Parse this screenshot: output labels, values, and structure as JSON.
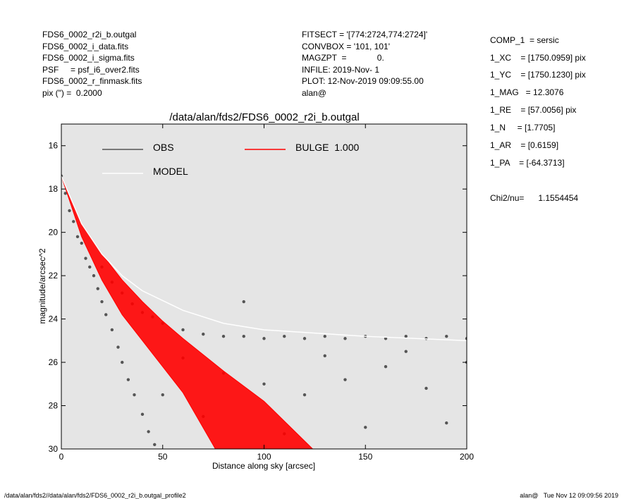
{
  "header": {
    "left": [
      "FDS6_0002_r2i_b.outgal",
      "FDS6_0002_i_data.fits",
      "FDS6_0002_i_sigma.fits",
      "PSF     = psf_i6_over2.fits",
      "FDS6_0002_r_finmask.fits",
      "pix (\") =  0.2000"
    ],
    "middle": [
      "FITSECT = '[774:2724,774:2724]'",
      "CONVBOX = '101, 101'",
      "MAGZPT  =             0.",
      "INFILE: 2019-Nov- 1",
      "PLOT: 12-Nov-2019 09:09:55.00",
      "alan@"
    ],
    "right": [
      "COMP_1  = sersic",
      "1_XC    = [1750.0959] pix",
      "1_YC    = [1750.1230] pix",
      "1_MAG   = 12.3076",
      "1_RE    = [57.0056] pix",
      "1_N     = [1.7705]",
      "1_AR    = [0.6159]",
      "1_PA    = [-64.3713]"
    ],
    "chi2": "Chi2/nu=      1.1554454"
  },
  "footer": {
    "left": "/data/alan/fds2//data/alan/fds2/FDS6_0002_r2i_b.outgal_profile2",
    "right": "alan@   Tue Nov 12 09:09:56 2019"
  },
  "chart_data": {
    "type": "scatter",
    "title": "/data/alan/fds2/FDS6_0002_r2i_b.outgal",
    "xlabel": "Distance along sky [arcsec]",
    "ylabel": "magnitude/arcsec^2",
    "xlim": [
      0,
      200
    ],
    "xticks": [
      0,
      50,
      100,
      150,
      200
    ],
    "ylim": [
      30,
      15
    ],
    "yticks": [
      16,
      18,
      20,
      22,
      24,
      26,
      28,
      30
    ],
    "y_inverted": true,
    "background": "#e5e5e5",
    "series": [
      {
        "name": "OBS",
        "type": "scatter",
        "color": "#555555",
        "x": [
          0,
          2,
          4,
          6,
          8,
          10,
          12,
          14,
          16,
          18,
          20,
          22,
          25,
          28,
          30,
          33,
          36,
          40,
          43,
          46,
          20,
          25,
          30,
          35,
          40,
          45,
          50,
          60,
          70,
          80,
          90,
          100,
          110,
          120,
          130,
          140,
          150,
          160,
          170,
          180,
          190,
          200,
          90,
          60,
          80,
          100,
          120,
          140,
          160,
          180,
          200,
          70,
          110,
          150,
          190,
          50,
          130,
          170
        ],
        "values": [
          17.4,
          18.2,
          19.0,
          19.5,
          20.2,
          20.5,
          21.2,
          21.6,
          22.0,
          22.6,
          23.2,
          23.8,
          24.5,
          25.3,
          26.0,
          26.8,
          27.5,
          28.4,
          29.2,
          29.8,
          21.6,
          22.3,
          22.8,
          23.3,
          23.7,
          23.9,
          24.2,
          24.5,
          24.7,
          24.8,
          24.8,
          24.9,
          24.8,
          24.9,
          24.8,
          24.9,
          24.8,
          24.9,
          24.8,
          24.9,
          24.8,
          24.9,
          23.2,
          25.8,
          26.5,
          27.0,
          27.5,
          26.8,
          26.2,
          27.2,
          26.0,
          28.5,
          29.3,
          29.0,
          28.8,
          27.5,
          25.7,
          25.5
        ]
      },
      {
        "name": "BULGE  1.000",
        "type": "area",
        "color": "#ff0000",
        "x": [
          0,
          10,
          20,
          30,
          40,
          50,
          60,
          76,
          80,
          100,
          124
        ],
        "values": [
          17.4,
          19.6,
          21.0,
          22.2,
          23.2,
          24.1,
          24.9,
          26.1,
          26.4,
          27.8,
          30
        ],
        "values_faint": [
          17.4,
          20.2,
          22.2,
          23.8,
          25.0,
          26.2,
          27.4,
          30,
          null,
          null,
          null
        ]
      },
      {
        "name": "MODEL",
        "type": "line",
        "color": "#ffffff",
        "x": [
          0,
          10,
          20,
          30,
          40,
          60,
          80,
          100,
          150,
          200
        ],
        "values": [
          17.4,
          19.6,
          21.0,
          22.0,
          22.7,
          23.6,
          24.2,
          24.5,
          24.8,
          25.0
        ]
      }
    ]
  }
}
